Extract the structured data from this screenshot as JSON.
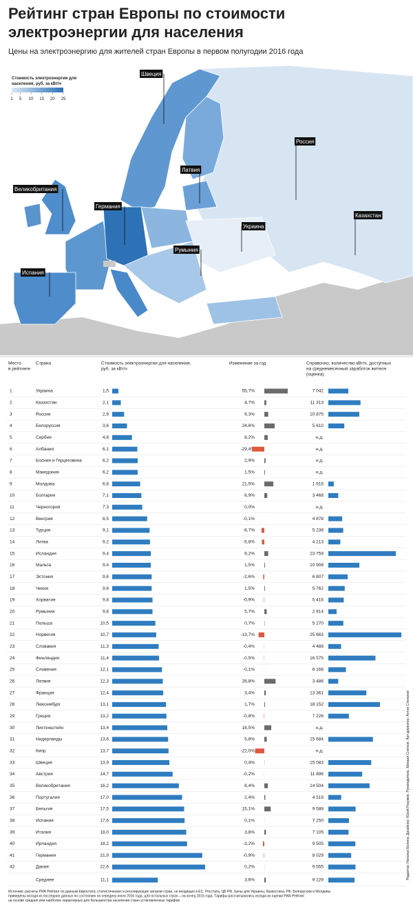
{
  "header": {
    "title": [
      "Рейтинг стран Европы по стоимости",
      "электроэнергии для населения"
    ],
    "subtitle": "Цены на электроэнергию для жителей стран Европы в первом полугодии 2016 года"
  },
  "map": {
    "legend_title": [
      "Стоимость электроэнергии для",
      "населения, руб. за кВт/ч"
    ],
    "legend_ticks": [
      1,
      5,
      10,
      15,
      20,
      25
    ],
    "legend_colors": [
      "#dce8f4",
      "#2d72b7"
    ],
    "labels": [
      "Швеция",
      "Россия",
      "Латвия",
      "Великобритания",
      "Германия",
      "Украина",
      "Казахстан",
      "Румыния",
      "Испания"
    ]
  },
  "colors": {
    "price": "#2f7cc0",
    "change_up": "#6b6b6b",
    "change_down": "#e0583e",
    "kwh": "#2f7cc0"
  },
  "table": {
    "columns": [
      [
        "Место",
        "в рейтинге"
      ],
      [
        "Страна"
      ],
      [
        "Стоимость электроэнергии для населения,",
        "руб. за кВт/ч"
      ],
      [
        "Изменение за год"
      ],
      [
        "Справочно, количество кВт/ч, доступных",
        "на среднемесячный заработок жителя",
        "(оценка)"
      ]
    ],
    "rows": [
      {
        "rank": 1,
        "country": "Украина",
        "price": {
          "value": 1.5,
          "label": "1,5"
        },
        "change": {
          "value": 55.7,
          "label": "55,7%"
        },
        "kwh": {
          "value": 7042,
          "label": "7 042"
        }
      },
      {
        "rank": 2,
        "country": "Казахстан",
        "price": {
          "value": 2.1,
          "label": "2,1"
        },
        "change": {
          "value": 4.7,
          "label": "4,7%"
        },
        "kwh": {
          "value": 11313,
          "label": "11 313"
        }
      },
      {
        "rank": 3,
        "country": "Россия",
        "price": {
          "value": 2.9,
          "label": "2,9"
        },
        "change": {
          "value": 9.3,
          "label": "9,3%"
        },
        "kwh": {
          "value": 10875,
          "label": "10 875"
        }
      },
      {
        "rank": 4,
        "country": "Белоруссия",
        "price": {
          "value": 3.6,
          "label": "3,6"
        },
        "change": {
          "value": 24.6,
          "label": "24,6%"
        },
        "kwh": {
          "value": 5610,
          "label": "5 610"
        }
      },
      {
        "rank": 5,
        "country": "Сербия",
        "price": {
          "value": 4.8,
          "label": "4,8"
        },
        "change": {
          "value": 8.2,
          "label": "8,2%"
        },
        "kwh": {
          "value": null,
          "label": "н.д."
        }
      },
      {
        "rank": 6,
        "country": "Албания",
        "price": {
          "value": 6.1,
          "label": "6,1"
        },
        "change": {
          "value": -29.4,
          "label": "-29,4%"
        },
        "kwh": {
          "value": null,
          "label": "н.д."
        }
      },
      {
        "rank": 7,
        "country": "Босния и Герцеговина",
        "price": {
          "value": 6.2,
          "label": "6,2"
        },
        "change": {
          "value": 2.9,
          "label": "2,9%"
        },
        "kwh": {
          "value": null,
          "label": "н.д."
        }
      },
      {
        "rank": 8,
        "country": "Македония",
        "price": {
          "value": 6.2,
          "label": "6,2"
        },
        "change": {
          "value": 1.5,
          "label": "1,5%"
        },
        "kwh": {
          "value": null,
          "label": "н.д."
        }
      },
      {
        "rank": 9,
        "country": "Молдова",
        "price": {
          "value": 6.8,
          "label": "6,8"
        },
        "change": {
          "value": 21.5,
          "label": "21,5%"
        },
        "kwh": {
          "value": 1916,
          "label": "1 916"
        }
      },
      {
        "rank": 10,
        "country": "Болгария",
        "price": {
          "value": 7.1,
          "label": "7,1"
        },
        "change": {
          "value": 6.9,
          "label": "6,9%"
        },
        "kwh": {
          "value": 3468,
          "label": "3 468"
        }
      },
      {
        "rank": 11,
        "country": "Черногория",
        "price": {
          "value": 7.3,
          "label": "7,3"
        },
        "change": {
          "value": 0.0,
          "label": "0,0%"
        },
        "kwh": {
          "value": null,
          "label": "н.д."
        }
      },
      {
        "rank": 12,
        "country": "Венгрия",
        "price": {
          "value": 8.5,
          "label": "8,5"
        },
        "change": {
          "value": -0.1,
          "label": "-0,1%"
        },
        "kwh": {
          "value": 4878,
          "label": "4 878"
        }
      },
      {
        "rank": 13,
        "country": "Турция",
        "price": {
          "value": 9.1,
          "label": "9,1"
        },
        "change": {
          "value": -6.7,
          "label": "-6,7%"
        },
        "kwh": {
          "value": 5236,
          "label": "5 236"
        }
      },
      {
        "rank": 14,
        "country": "Литва",
        "price": {
          "value": 9.2,
          "label": "9,2"
        },
        "change": {
          "value": -5.8,
          "label": "-5,8%"
        },
        "kwh": {
          "value": 4213,
          "label": "4 213"
        }
      },
      {
        "rank": 15,
        "country": "Исландия",
        "price": {
          "value": 9.4,
          "label": "9,4"
        },
        "change": {
          "value": 9.2,
          "label": "9,2%"
        },
        "kwh": {
          "value": 23759,
          "label": "23 759"
        }
      },
      {
        "rank": 16,
        "country": "Мальта",
        "price": {
          "value": 9.4,
          "label": "9,4"
        },
        "change": {
          "value": 1.5,
          "label": "1,5%"
        },
        "kwh": {
          "value": 10908,
          "label": "10 908"
        }
      },
      {
        "rank": 17,
        "country": "Эстония",
        "price": {
          "value": 9.6,
          "label": "9,6"
        },
        "change": {
          "value": -2.6,
          "label": "-2,6%"
        },
        "kwh": {
          "value": 6807,
          "label": "6 807"
        }
      },
      {
        "rank": 18,
        "country": "Чехия",
        "price": {
          "value": 9.6,
          "label": "9,6"
        },
        "change": {
          "value": 1.5,
          "label": "1,5%"
        },
        "kwh": {
          "value": 5762,
          "label": "5 762"
        }
      },
      {
        "rank": 19,
        "country": "Хорватия",
        "price": {
          "value": 9.8,
          "label": "9,8"
        },
        "change": {
          "value": -0.9,
          "label": "-0,9%"
        },
        "kwh": {
          "value": 5416,
          "label": "5 416"
        }
      },
      {
        "rank": 20,
        "country": "Румыния",
        "price": {
          "value": 9.8,
          "label": "9,8"
        },
        "change": {
          "value": 5.7,
          "label": "5,7%"
        },
        "kwh": {
          "value": 2914,
          "label": "2 914"
        }
      },
      {
        "rank": 21,
        "country": "Польша",
        "price": {
          "value": 10.5,
          "label": "10,5"
        },
        "change": {
          "value": 0.7,
          "label": "0,7%"
        },
        "kwh": {
          "value": 5270,
          "label": "5 270"
        }
      },
      {
        "rank": 22,
        "country": "Норвегия",
        "price": {
          "value": 10.7,
          "label": "10,7"
        },
        "change": {
          "value": -13.7,
          "label": "-13,7%"
        },
        "kwh": {
          "value": 25663,
          "label": "25 663"
        }
      },
      {
        "rank": 23,
        "country": "Словакия",
        "price": {
          "value": 11.3,
          "label": "11,3"
        },
        "change": {
          "value": -0.4,
          "label": "-0,4%"
        },
        "kwh": {
          "value": 4488,
          "label": "4 488"
        }
      },
      {
        "rank": 24,
        "country": "Финляндия",
        "price": {
          "value": 11.4,
          "label": "11,4"
        },
        "change": {
          "value": -0.5,
          "label": "-0,5%"
        },
        "kwh": {
          "value": 16575,
          "label": "16 575"
        }
      },
      {
        "rank": 25,
        "country": "Словения",
        "price": {
          "value": 12.1,
          "label": "12,1"
        },
        "change": {
          "value": -0.1,
          "label": "-0,1%"
        },
        "kwh": {
          "value": 6168,
          "label": "6 168"
        }
      },
      {
        "rank": 26,
        "country": "Латвия",
        "price": {
          "value": 12.3,
          "label": "12,3"
        },
        "change": {
          "value": 26.8,
          "label": "26,8%"
        },
        "kwh": {
          "value": 3486,
          "label": "3 486"
        }
      },
      {
        "rank": 27,
        "country": "Франция",
        "price": {
          "value": 12.4,
          "label": "12,4"
        },
        "change": {
          "value": 3.4,
          "label": "3,4%"
        },
        "kwh": {
          "value": 13361,
          "label": "13 361"
        }
      },
      {
        "rank": 28,
        "country": "Люксембург",
        "price": {
          "value": 13.1,
          "label": "13,1"
        },
        "change": {
          "value": 1.7,
          "label": "1,7%"
        },
        "kwh": {
          "value": 18152,
          "label": "18 152"
        }
      },
      {
        "rank": 29,
        "country": "Греция",
        "price": {
          "value": 13.2,
          "label": "13,2"
        },
        "change": {
          "value": -0.8,
          "label": "-0,8%"
        },
        "kwh": {
          "value": 7226,
          "label": "7 226"
        }
      },
      {
        "rank": 30,
        "country": "Лихтенштейн",
        "price": {
          "value": 13.4,
          "label": "13,4"
        },
        "change": {
          "value": 16.5,
          "label": "16,5%"
        },
        "kwh": {
          "value": null,
          "label": "н.д."
        }
      },
      {
        "rank": 31,
        "country": "Нидерланды",
        "price": {
          "value": 13.6,
          "label": "13,6"
        },
        "change": {
          "value": 5.8,
          "label": "5,8%"
        },
        "kwh": {
          "value": 15684,
          "label": "15 684"
        }
      },
      {
        "rank": 32,
        "country": "Кипр",
        "price": {
          "value": 13.7,
          "label": "13,7"
        },
        "change": {
          "value": -22.0,
          "label": "-22,0%"
        },
        "kwh": {
          "value": null,
          "label": "н.д."
        }
      },
      {
        "rank": 33,
        "country": "Швеция",
        "price": {
          "value": 13.9,
          "label": "13,9"
        },
        "change": {
          "value": 0.4,
          "label": "0,4%"
        },
        "kwh": {
          "value": 15083,
          "label": "15 083"
        }
      },
      {
        "rank": 34,
        "country": "Австрия",
        "price": {
          "value": 14.7,
          "label": "14,7"
        },
        "change": {
          "value": -0.2,
          "label": "-0,2%"
        },
        "kwh": {
          "value": 11896,
          "label": "11 896"
        }
      },
      {
        "rank": 35,
        "country": "Великобритания",
        "price": {
          "value": 16.2,
          "label": "16,2"
        },
        "change": {
          "value": 8.4,
          "label": "8,4%"
        },
        "kwh": {
          "value": 14504,
          "label": "14 504"
        }
      },
      {
        "rank": 36,
        "country": "Португалия",
        "price": {
          "value": 17.0,
          "label": "17,0"
        },
        "change": {
          "value": 2.4,
          "label": "2,4%"
        },
        "kwh": {
          "value": 4519,
          "label": "4 519"
        }
      },
      {
        "rank": 37,
        "country": "Бельгия",
        "price": {
          "value": 17.5,
          "label": "17,5"
        },
        "change": {
          "value": 15.1,
          "label": "15,1%"
        },
        "kwh": {
          "value": 9588,
          "label": "9 588"
        }
      },
      {
        "rank": 38,
        "country": "Испания",
        "price": {
          "value": 17.6,
          "label": "17,6"
        },
        "change": {
          "value": 0.1,
          "label": "0,1%"
        },
        "kwh": {
          "value": 7250,
          "label": "7 250"
        }
      },
      {
        "rank": 39,
        "country": "Италия",
        "price": {
          "value": 18.0,
          "label": "18,0"
        },
        "change": {
          "value": 3.8,
          "label": "3,8%"
        },
        "kwh": {
          "value": 7105,
          "label": "7 105"
        }
      },
      {
        "rank": 40,
        "country": "Ирландия",
        "price": {
          "value": 18.2,
          "label": "18,2"
        },
        "change": {
          "value": -3.2,
          "label": "-3,2%"
        },
        "kwh": {
          "value": 9505,
          "label": "9 505"
        }
      },
      {
        "rank": 41,
        "country": "Германия",
        "price": {
          "value": 21.9,
          "label": "21,9"
        },
        "change": {
          "value": -0.9,
          "label": "-0,9%"
        },
        "kwh": {
          "value": 8029,
          "label": "8 029"
        }
      },
      {
        "rank": 42,
        "country": "Дания",
        "price": {
          "value": 22.6,
          "label": "22,6"
        },
        "change": {
          "value": 0.2,
          "label": "0,2%"
        },
        "kwh": {
          "value": 9555,
          "label": "9 555"
        }
      }
    ],
    "average": {
      "country": "Среднее",
      "price": {
        "value": 11.1,
        "label": "11,1"
      },
      "change": {
        "value": 3.6,
        "label": "3,6%"
      },
      "kwh": {
        "value": 9229,
        "label": "9 229"
      }
    }
  },
  "footer": {
    "source": [
      "Источник: расчеты РИА Рейтинг по данным Евростата, статистических и регулирующих органов стран, не входящих в ЕС, Росстата, ЦБ РФ. Цены для Украины, Казахстана, РФ, Белоруссии и Молдовы",
      "приведены исходя из последних данных по состоянию на середину июня 2016 года, для остальных стран – на конец 2015 года. Тарифы рассчитывались исходя из оценки РИА Рейтинг",
      "на основе средних или наиболее характерных для большинства населения стран установленных тарифов"
    ],
    "credits": "Редактор: Наталья Белина. Дизайнер: Юрий Разумов. Руководитель: Михаил Снетков. Арт-директор: Антон Степанов"
  }
}
